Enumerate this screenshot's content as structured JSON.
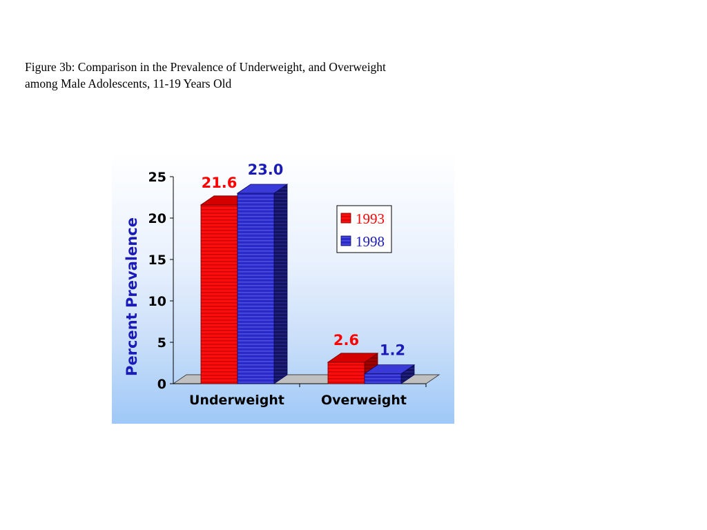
{
  "caption": {
    "line1": "Figure 3b: Comparison in the Prevalence of Underweight, and Overweight",
    "line2": "among Male Adolescents, 11-19 Years Old"
  },
  "chart_data": {
    "type": "bar",
    "categories": [
      "Underweight",
      "Overweight"
    ],
    "series": [
      {
        "name": "1993",
        "values": [
          21.6,
          2.6
        ],
        "labels": [
          "21.6",
          "2.6"
        ],
        "color": "#ff0000"
      },
      {
        "name": "1998",
        "values": [
          23.0,
          1.2
        ],
        "labels": [
          "23.0",
          "1.2"
        ],
        "color": "#1a1ab8"
      }
    ],
    "ylabel": "Percent Prevalence",
    "ylim": [
      0,
      25
    ],
    "yticks": [
      "0",
      "5",
      "10",
      "15",
      "20",
      "25"
    ],
    "legend_position": "right",
    "three_d": true
  },
  "colors": {
    "ylabel": "#1a1ab8",
    "floor": "#c0c0c0",
    "panel_bottom": "#9ec8f7"
  }
}
